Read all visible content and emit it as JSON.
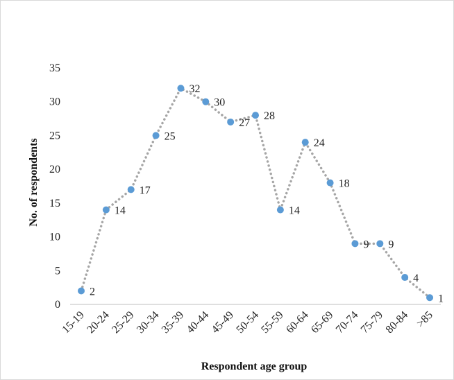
{
  "chart_data": {
    "type": "line",
    "title": "",
    "xlabel": "Respondent age group",
    "ylabel": "No. of  respondents",
    "categories": [
      "15-19",
      "20-24",
      "25-29",
      "30-34",
      "35-39",
      "40-44",
      "45-49",
      "50-54",
      "55-59",
      "60-64",
      "65-69",
      "70-74",
      "75-79",
      "80-84",
      ">85"
    ],
    "series": [
      {
        "values": [
          2,
          14,
          17,
          25,
          32,
          30,
          27,
          28,
          14,
          24,
          18,
          9,
          9,
          4,
          1
        ]
      }
    ],
    "data_labels": [
      "2",
      "14",
      "17",
      "25",
      "32",
      "30",
      "27",
      "28",
      "14",
      "24",
      "18",
      "9",
      "9",
      "4",
      "1"
    ],
    "yticks": [
      "0",
      "5",
      "10",
      "15",
      "20",
      "25",
      "30",
      "35"
    ],
    "ylim": [
      0,
      35
    ],
    "grid": false,
    "line_style": "dotted",
    "colors": {
      "line": "#a6a6a6",
      "marker": "#5b9bd5",
      "axis": "#bfbfbf"
    }
  }
}
